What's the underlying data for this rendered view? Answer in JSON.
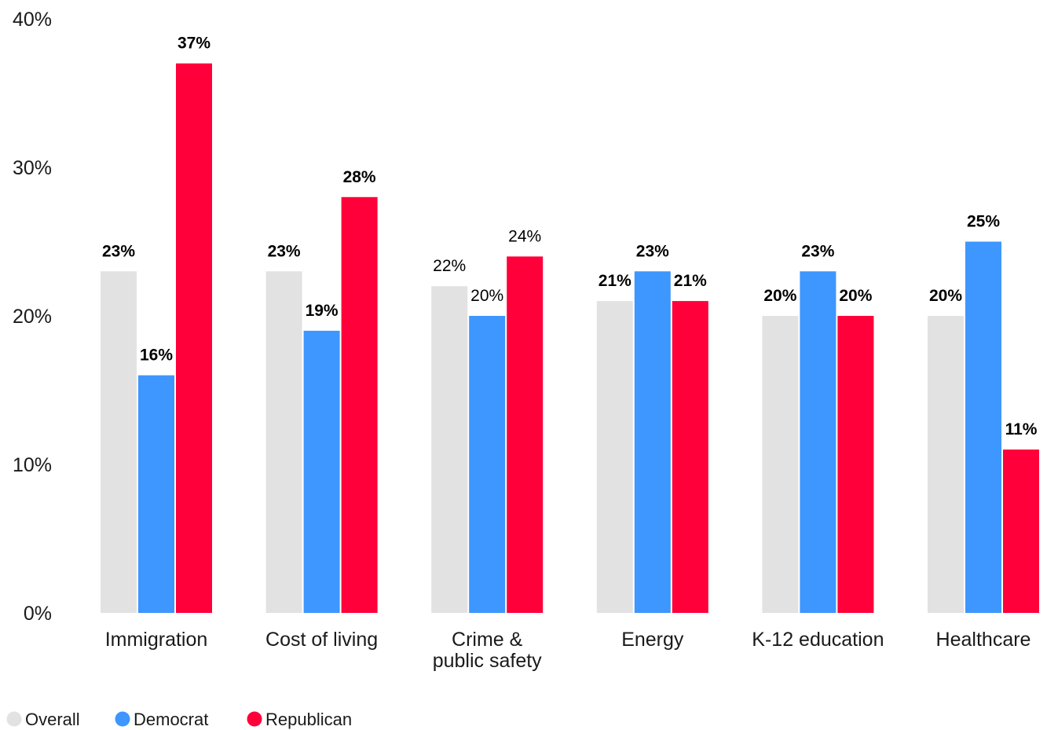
{
  "chart_data": {
    "type": "bar",
    "categories": [
      "Immigration",
      "Cost of living",
      "Crime &\npublic safety",
      "Energy",
      "K-12 education",
      "Healthcare"
    ],
    "series": [
      {
        "name": "Overall",
        "color": "#e2e2e2",
        "values": [
          23,
          23,
          22,
          21,
          20,
          20
        ],
        "labels": [
          "23%",
          "23%",
          "22%",
          "21%",
          "20%",
          "20%"
        ],
        "bold": [
          true,
          true,
          false,
          true,
          true,
          true
        ]
      },
      {
        "name": "Democrat",
        "color": "#3e96ff",
        "values": [
          16,
          19,
          20,
          23,
          23,
          25
        ],
        "labels": [
          "16%",
          "19%",
          "20%",
          "23%",
          "23%",
          "25%"
        ],
        "bold": [
          true,
          true,
          false,
          true,
          true,
          true
        ]
      },
      {
        "name": "Republican",
        "color": "#ff003a",
        "values": [
          37,
          28,
          24,
          21,
          20,
          11
        ],
        "labels": [
          "37%",
          "28%",
          "24%",
          "21%",
          "20%",
          "11%"
        ],
        "bold": [
          true,
          true,
          false,
          true,
          true,
          true
        ]
      }
    ],
    "yticks": [
      "0%",
      "10%",
      "20%",
      "30%",
      "40%"
    ],
    "ylim": [
      0,
      40
    ],
    "grid": false,
    "legend_position": "bottom-left",
    "title": "",
    "xlabel": "",
    "ylabel": ""
  }
}
